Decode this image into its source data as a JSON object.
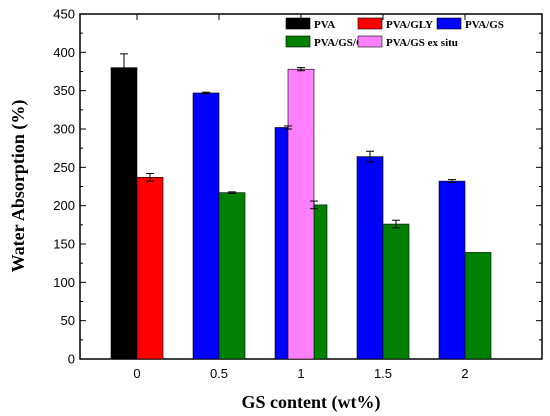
{
  "chart_data": {
    "type": "bar",
    "categories": [
      "0",
      "0.5",
      "1",
      "1.5",
      "2"
    ],
    "xlabel": "GS content (wt%)",
    "ylabel": "Water Absorption (%)",
    "ylim": [
      0,
      450
    ],
    "yticks": [
      "0",
      "50",
      "100",
      "150",
      "200",
      "250",
      "300",
      "350",
      "400",
      "450"
    ],
    "grid": false,
    "legend_position": "top-right",
    "series": [
      {
        "name": "PVA",
        "color": "#000000",
        "values": [
          380,
          null,
          null,
          null,
          null
        ],
        "errors": [
          18,
          null,
          null,
          null,
          null
        ]
      },
      {
        "name": "PVA/GLY",
        "color": "#ff0000",
        "values": [
          237,
          null,
          null,
          null,
          null
        ],
        "errors": [
          5,
          null,
          null,
          null,
          null
        ]
      },
      {
        "name": "PVA/GS",
        "color": "#0000ff",
        "values": [
          null,
          347,
          302,
          264,
          232
        ],
        "errors": [
          null,
          1,
          2,
          7,
          2
        ]
      },
      {
        "name": "PVA/GS/GLY",
        "color": "#008000",
        "values": [
          null,
          217,
          201,
          176,
          139
        ],
        "errors": [
          null,
          1,
          5,
          5,
          null
        ]
      },
      {
        "name": "PVA/GS ex situ",
        "color": "#ff80ff",
        "values": [
          null,
          null,
          378,
          null,
          null
        ],
        "errors": [
          null,
          null,
          2,
          null,
          null
        ]
      }
    ]
  }
}
